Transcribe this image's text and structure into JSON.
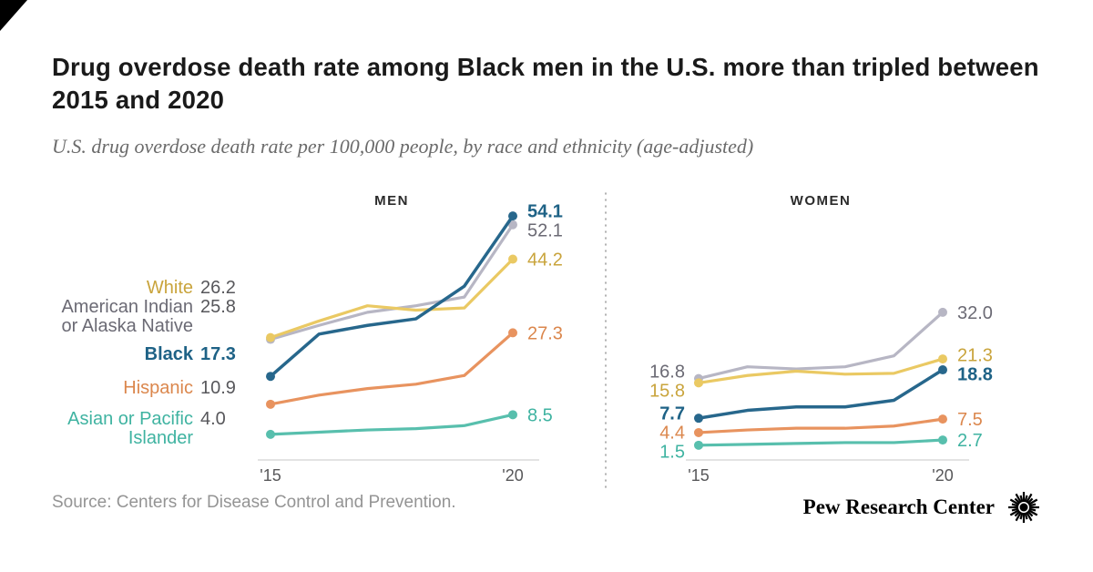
{
  "page": {
    "title": "Drug overdose death rate among Black men in the U.S. more than tripled between 2015 and 2020",
    "subtitle": "U.S. drug overdose death rate per 100,000 people, by race and ethnicity (age-adjusted)",
    "source": "Source: Centers for Disease Control and Prevention.",
    "brand": "Pew Research Center"
  },
  "chart_data": {
    "type": "line",
    "x": [
      2015,
      2016,
      2017,
      2018,
      2019,
      2020
    ],
    "x_tick_labels": [
      "'15",
      "'20"
    ],
    "y_axis": {
      "min": 0,
      "max": 56,
      "visible": false
    },
    "unit": "drug overdose deaths per 100,000 people (age-adjusted)",
    "legend_position": "left-of-lines",
    "grid": false,
    "panels": [
      {
        "label": "MEN",
        "show_start_value_labels": false,
        "series": [
          {
            "id": "american-indian",
            "name": "American Indian or Alaska Native",
            "line_color": "#B7B6C4",
            "label_color": "#6B6A74",
            "emphasized": false,
            "values": [
              25.8,
              29.0,
              32.0,
              33.5,
              35.5,
              52.1
            ],
            "start_label": "25.8",
            "end_label": "52.1"
          },
          {
            "id": "white",
            "name": "White",
            "line_color": "#EAC963",
            "label_color": "#C9A43C",
            "emphasized": false,
            "values": [
              26.2,
              30.0,
              33.5,
              32.5,
              33.0,
              44.2
            ],
            "start_label": "26.2",
            "end_label": "44.2"
          },
          {
            "id": "hispanic",
            "name": "Hispanic",
            "line_color": "#E8935F",
            "label_color": "#DB874D",
            "emphasized": false,
            "values": [
              10.9,
              13.0,
              14.5,
              15.5,
              17.5,
              27.3
            ],
            "start_label": "10.9",
            "end_label": "27.3"
          },
          {
            "id": "asian",
            "name": "Asian or Pacific Islander",
            "line_color": "#58BFAD",
            "label_color": "#3FB3A1",
            "emphasized": false,
            "values": [
              4.0,
              4.5,
              5.0,
              5.3,
              6.0,
              8.5
            ],
            "start_label": "4.0",
            "end_label": "8.5"
          },
          {
            "id": "black",
            "name": "Black",
            "line_color": "#27678C",
            "label_color": "#1E6286",
            "emphasized": true,
            "values": [
              17.3,
              27.0,
              29.0,
              30.5,
              38.0,
              54.1
            ],
            "start_label": "17.3",
            "end_label": "54.1"
          }
        ]
      },
      {
        "label": "WOMEN",
        "show_start_value_labels": true,
        "series": [
          {
            "id": "american-indian",
            "name": "American Indian or Alaska Native",
            "line_color": "#B7B6C4",
            "label_color": "#6B6A74",
            "emphasized": false,
            "values": [
              16.8,
              19.5,
              19.0,
              19.5,
              22.0,
              32.0
            ],
            "start_label": "16.8",
            "end_label": "32.0"
          },
          {
            "id": "white",
            "name": "White",
            "line_color": "#EAC963",
            "label_color": "#C9A43C",
            "emphasized": false,
            "values": [
              15.8,
              17.5,
              18.5,
              17.8,
              18.0,
              21.3
            ],
            "start_label": "15.8",
            "end_label": "21.3"
          },
          {
            "id": "hispanic",
            "name": "Hispanic",
            "line_color": "#E8935F",
            "label_color": "#DB874D",
            "emphasized": false,
            "values": [
              4.4,
              5.0,
              5.4,
              5.4,
              5.9,
              7.5
            ],
            "start_label": "4.4",
            "end_label": "7.5"
          },
          {
            "id": "asian",
            "name": "Asian or Pacific Islander",
            "line_color": "#58BFAD",
            "label_color": "#3FB3A1",
            "emphasized": false,
            "values": [
              1.5,
              1.7,
              1.9,
              2.1,
              2.1,
              2.7
            ],
            "start_label": "1.5",
            "end_label": "2.7"
          },
          {
            "id": "black",
            "name": "Black",
            "line_color": "#27678C",
            "label_color": "#1E6286",
            "emphasized": true,
            "values": [
              7.7,
              9.5,
              10.3,
              10.3,
              11.8,
              18.8
            ],
            "start_label": "7.7",
            "end_label": "18.8"
          }
        ]
      }
    ]
  }
}
